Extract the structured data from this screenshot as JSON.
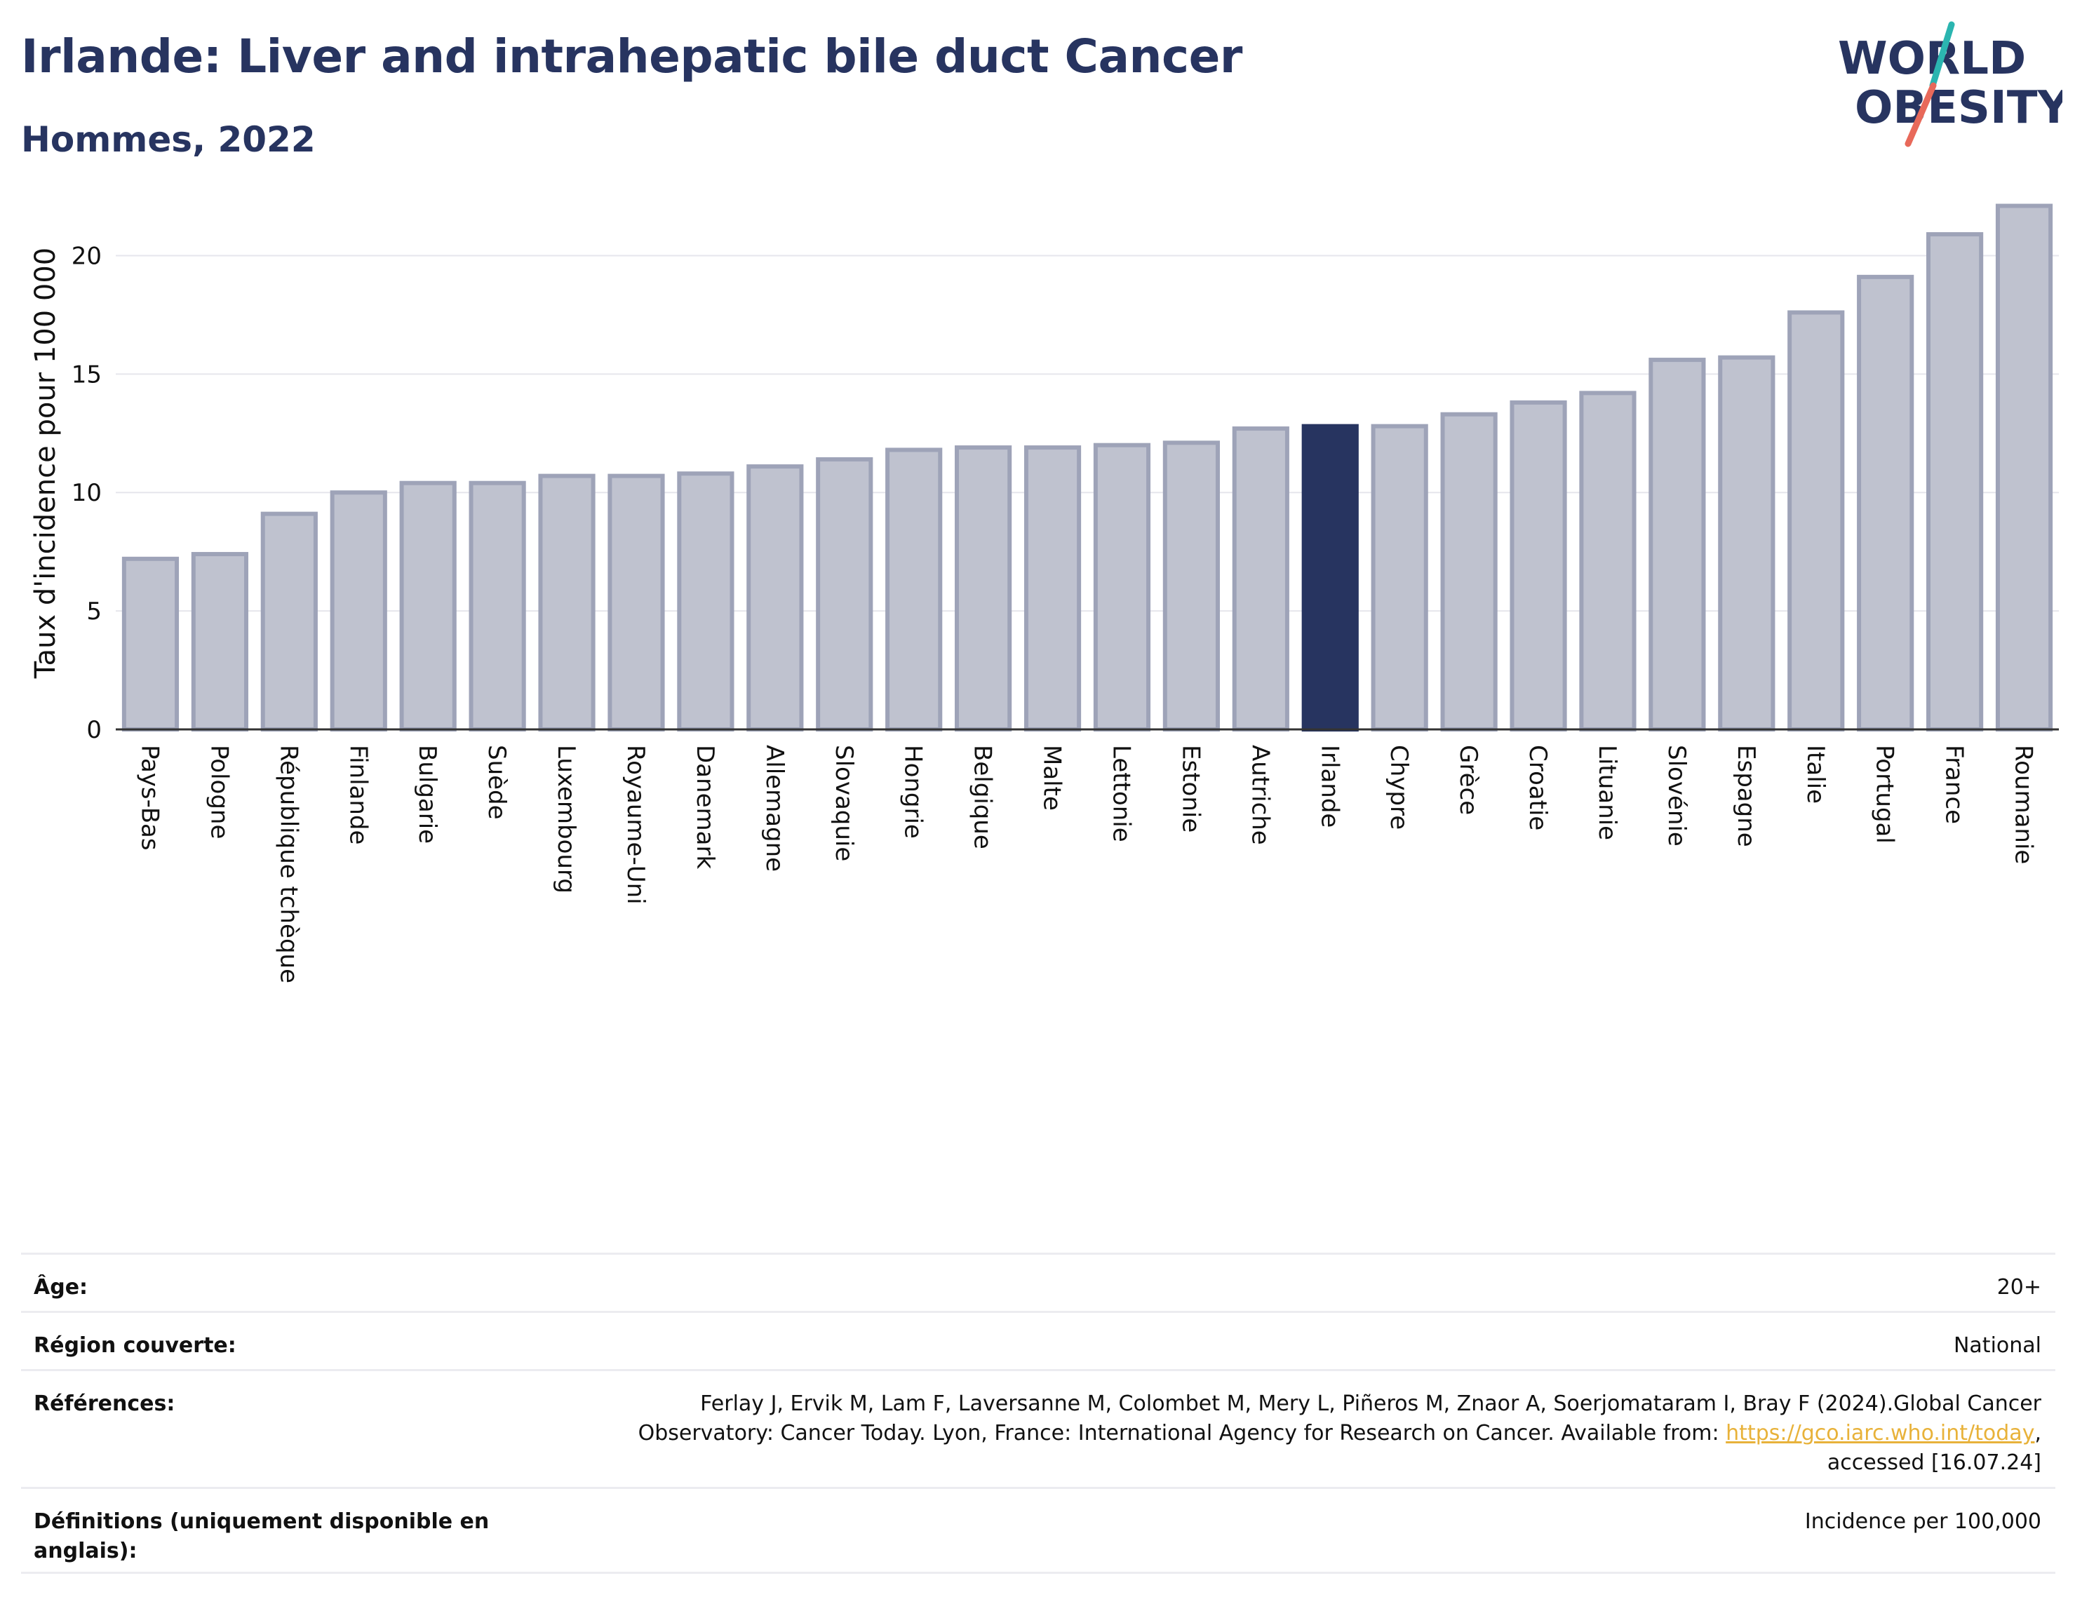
{
  "header": {
    "title": "Irlande: Liver and intrahepatic bile duct Cancer",
    "subtitle": "Hommes, 2022"
  },
  "logo": {
    "line1": "WORLD",
    "line2": "OBESITY",
    "colors": {
      "text": "#273460",
      "slash_teal": "#2bb5b0",
      "slash_coral": "#e8695a"
    }
  },
  "chart_data": {
    "type": "bar",
    "ylabel": "Taux d'incidence pour 100 000",
    "ylim": [
      0,
      22.5
    ],
    "yticks": [
      0,
      5,
      10,
      15,
      20
    ],
    "grid": true,
    "highlight": "Irlande",
    "colors": {
      "bar": "#bfc2cf",
      "bar_border": "#9ea3b8",
      "highlight": "#273460"
    },
    "categories": [
      "Pays-Bas",
      "Pologne",
      "République tchèque",
      "Finlande",
      "Bulgarie",
      "Suède",
      "Luxembourg",
      "Royaume-Uni",
      "Danemark",
      "Allemagne",
      "Slovaquie",
      "Hongrie",
      "Belgique",
      "Malte",
      "Lettonie",
      "Estonie",
      "Autriche",
      "Irlande",
      "Chypre",
      "Grèce",
      "Croatie",
      "Lituanie",
      "Slovénie",
      "Espagne",
      "Italie",
      "Portugal",
      "France",
      "Roumanie"
    ],
    "values": [
      7.2,
      7.4,
      9.1,
      10.0,
      10.4,
      10.4,
      10.7,
      10.7,
      10.8,
      11.1,
      11.4,
      11.8,
      11.9,
      11.9,
      12.0,
      12.1,
      12.7,
      12.8,
      12.8,
      13.3,
      13.8,
      14.2,
      15.6,
      15.7,
      17.6,
      19.1,
      20.9,
      22.1
    ]
  },
  "meta": {
    "age_label": "Âge:",
    "age_value": "20+",
    "region_label": "Région couverte:",
    "region_value": "National",
    "refs_label": "Références:",
    "refs_text_1": "Ferlay J, Ervik M, Lam F, Laversanne M, Colombet M, Mery L, Piñeros M, Znaor A, Soerjomataram I, Bray F (2024).Global Cancer",
    "refs_text_2": "Observatory: Cancer Today. Lyon, France: International Agency for Research on Cancer. Available from: ",
    "refs_link": "https://gco.iarc.who.int/today",
    "refs_text_3": ",",
    "refs_text_4": "accessed [16.07.24]",
    "defs_label": "Définitions (uniquement disponible en anglais):",
    "defs_value": "Incidence per 100,000"
  }
}
